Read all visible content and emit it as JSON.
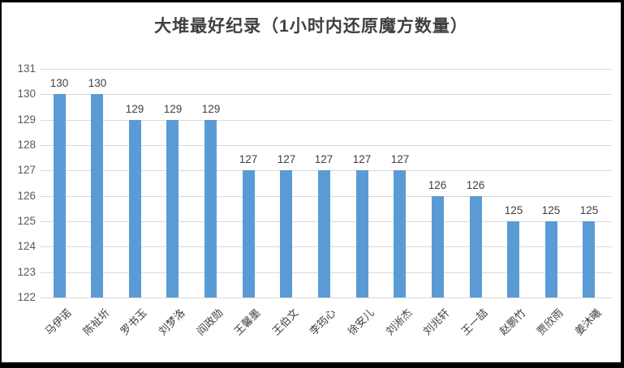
{
  "window": {
    "background": "#ffffff",
    "frame_border_color": "#000000"
  },
  "chart_data": {
    "type": "bar",
    "title": "大堆最好纪录（1小时内还原魔方数量）",
    "categories": [
      "马伊诺",
      "陈祉圻",
      "罗书玉",
      "刘梦洛",
      "阎政勋",
      "王馨墨",
      "王伯文",
      "李筠心",
      "徐安儿",
      "刘淅杰",
      "刘兆轩",
      "王一喆",
      "赵鹏竹",
      "贾欣雨",
      "姜沐曦"
    ],
    "values": [
      130,
      130,
      129,
      129,
      129,
      127,
      127,
      127,
      127,
      127,
      126,
      126,
      125,
      125,
      125
    ],
    "xlabel": "",
    "ylabel": "",
    "ylim": [
      122,
      131
    ],
    "ytick_step": 1,
    "yticks": [
      122,
      123,
      124,
      125,
      126,
      127,
      128,
      129,
      130,
      131
    ],
    "grid": true,
    "legend_position": "none",
    "data_labels_shown": true,
    "bar_color": "#5b9bd5",
    "gridline_color": "#d9d9d9",
    "tick_label_color": "#595959",
    "data_label_color": "#404040",
    "title_color": "#404040"
  }
}
